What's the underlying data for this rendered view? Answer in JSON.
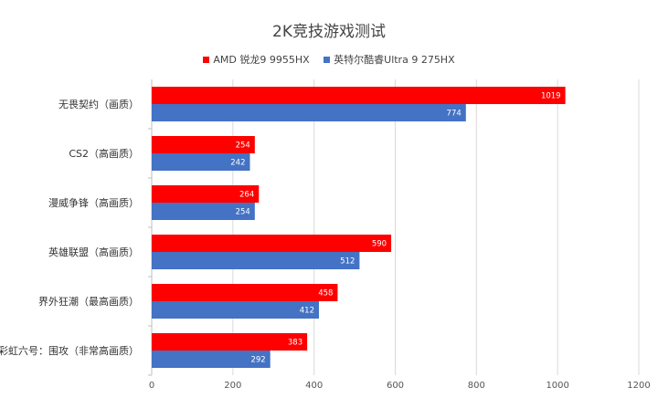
{
  "chart_data": {
    "type": "bar",
    "orientation": "horizontal",
    "title": "2K竞技游戏测试",
    "categories": [
      "无畏契约（画质）",
      "CS2（高画质）",
      "漫威争锋（高画质）",
      "英雄联盟（高画质）",
      "界外狂潮（最高画质）",
      "彩虹六号：围攻（非常高画质）"
    ],
    "series": [
      {
        "name": "AMD 锐龙9 9955HX",
        "color": "#ff0000",
        "values": [
          1019,
          254,
          264,
          590,
          458,
          383
        ]
      },
      {
        "name": "英特尔酷睿Ultra 9 275HX",
        "color": "#4472c4",
        "values": [
          774,
          242,
          254,
          512,
          412,
          292
        ]
      }
    ],
    "xlim": [
      0,
      1200
    ],
    "xticks": [
      "0",
      "200",
      "400",
      "600",
      "800",
      "1000",
      "1200"
    ],
    "grid": true,
    "legend_position": "top-center"
  }
}
